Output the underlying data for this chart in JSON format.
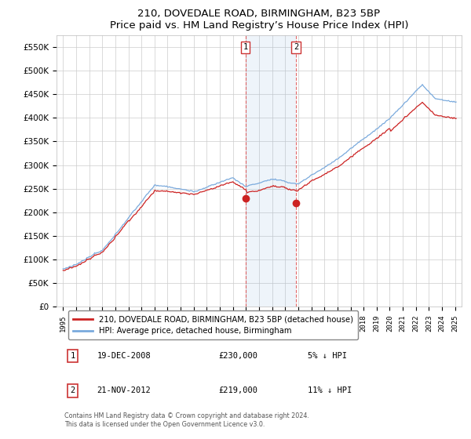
{
  "title": "210, DOVEDALE ROAD, BIRMINGHAM, B23 5BP",
  "subtitle": "Price paid vs. HM Land Registry’s House Price Index (HPI)",
  "ylim": [
    0,
    575000
  ],
  "yticks": [
    0,
    50000,
    100000,
    150000,
    200000,
    250000,
    300000,
    350000,
    400000,
    450000,
    500000,
    550000
  ],
  "hpi_color": "#7aaadd",
  "price_color": "#cc2222",
  "t1_year": 2008.958,
  "t1_price": 230000,
  "t2_year": 2012.833,
  "t2_price": 219000,
  "shade_x1": 2008.958,
  "shade_x2": 2012.833,
  "background_color": "#ffffff",
  "grid_color": "#cccccc",
  "legend_label_price": "210, DOVEDALE ROAD, BIRMINGHAM, B23 5BP (detached house)",
  "legend_label_hpi": "HPI: Average price, detached house, Birmingham",
  "footnote": "Contains HM Land Registry data © Crown copyright and database right 2024.\nThis data is licensed under the Open Government Licence v3.0.",
  "ann1_date": "19-DEC-2008",
  "ann1_price": "£230,000",
  "ann1_pct": "5% ↓ HPI",
  "ann2_date": "21-NOV-2012",
  "ann2_price": "£219,000",
  "ann2_pct": "11% ↓ HPI",
  "xlim_left": 1994.5,
  "xlim_right": 2025.5
}
